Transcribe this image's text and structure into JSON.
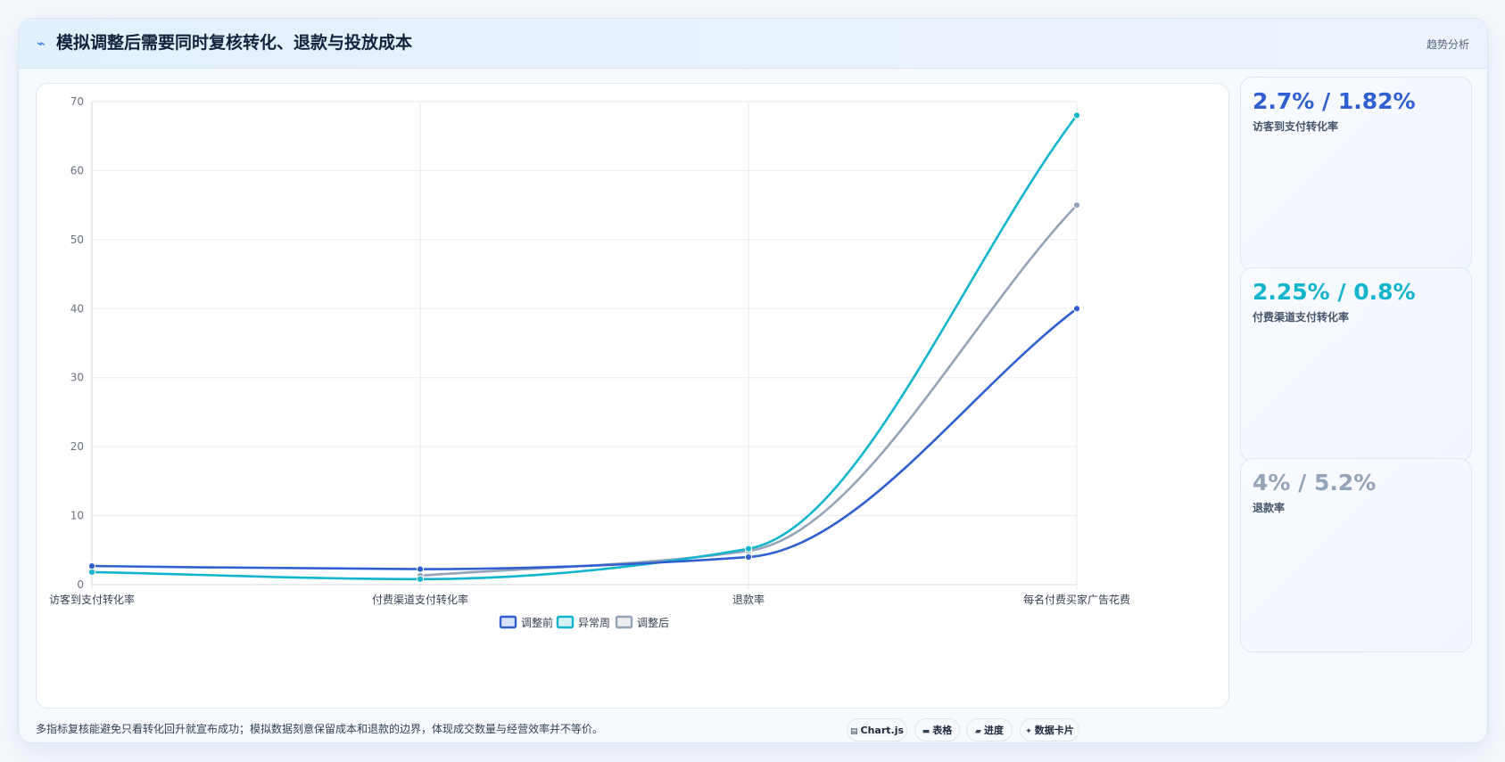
{
  "header": {
    "icon": "trend-icon",
    "title": "模拟调整后需要同时复核转化、退款与投放成本",
    "tag": "趋势分析"
  },
  "chart_data": {
    "type": "line",
    "categories": [
      "访客到支付转化率",
      "付费渠道支付转化率",
      "退款率",
      "每名付费买家广告花费"
    ],
    "ylim": [
      0,
      70
    ],
    "yticks": [
      0,
      10,
      20,
      30,
      40,
      50,
      60,
      70
    ],
    "grid": true,
    "legend_position": "bottom",
    "series": [
      {
        "name": "调整前",
        "color": "#2f5fd0",
        "values": [
          2.7,
          2.25,
          4,
          40
        ]
      },
      {
        "name": "异常周",
        "color": "#12b5cb",
        "values": [
          1.82,
          0.8,
          5.2,
          68
        ]
      },
      {
        "name": "调整后",
        "color": "#94a3b8",
        "values": [
          null,
          1.3,
          4.9,
          55
        ]
      }
    ]
  },
  "stats": [
    {
      "value": "2.7% / 1.82%",
      "label": "访客到支付转化率",
      "color": "#2f5fd0"
    },
    {
      "value": "2.25% / 0.8%",
      "label": "付费渠道支付转化率",
      "color": "#12b5cb"
    },
    {
      "value": "4% / 5.2%",
      "label": "退款率",
      "color": "#94a3b8"
    }
  ],
  "footer": {
    "note": "多指标复核能避免只看转化回升就宣布成功；模拟数据刻意保留成本和退款的边界，体现成交数量与经营效率并不等价。",
    "pills": [
      {
        "icon": "chart-icon",
        "glyph": "▤",
        "label": "Chart.js"
      },
      {
        "icon": "table-icon",
        "glyph": "▬",
        "label": "表格"
      },
      {
        "icon": "progress-icon",
        "glyph": "▰",
        "label": "进度"
      },
      {
        "icon": "sparkle-icon",
        "glyph": "✦",
        "label": "数据卡片"
      }
    ]
  }
}
